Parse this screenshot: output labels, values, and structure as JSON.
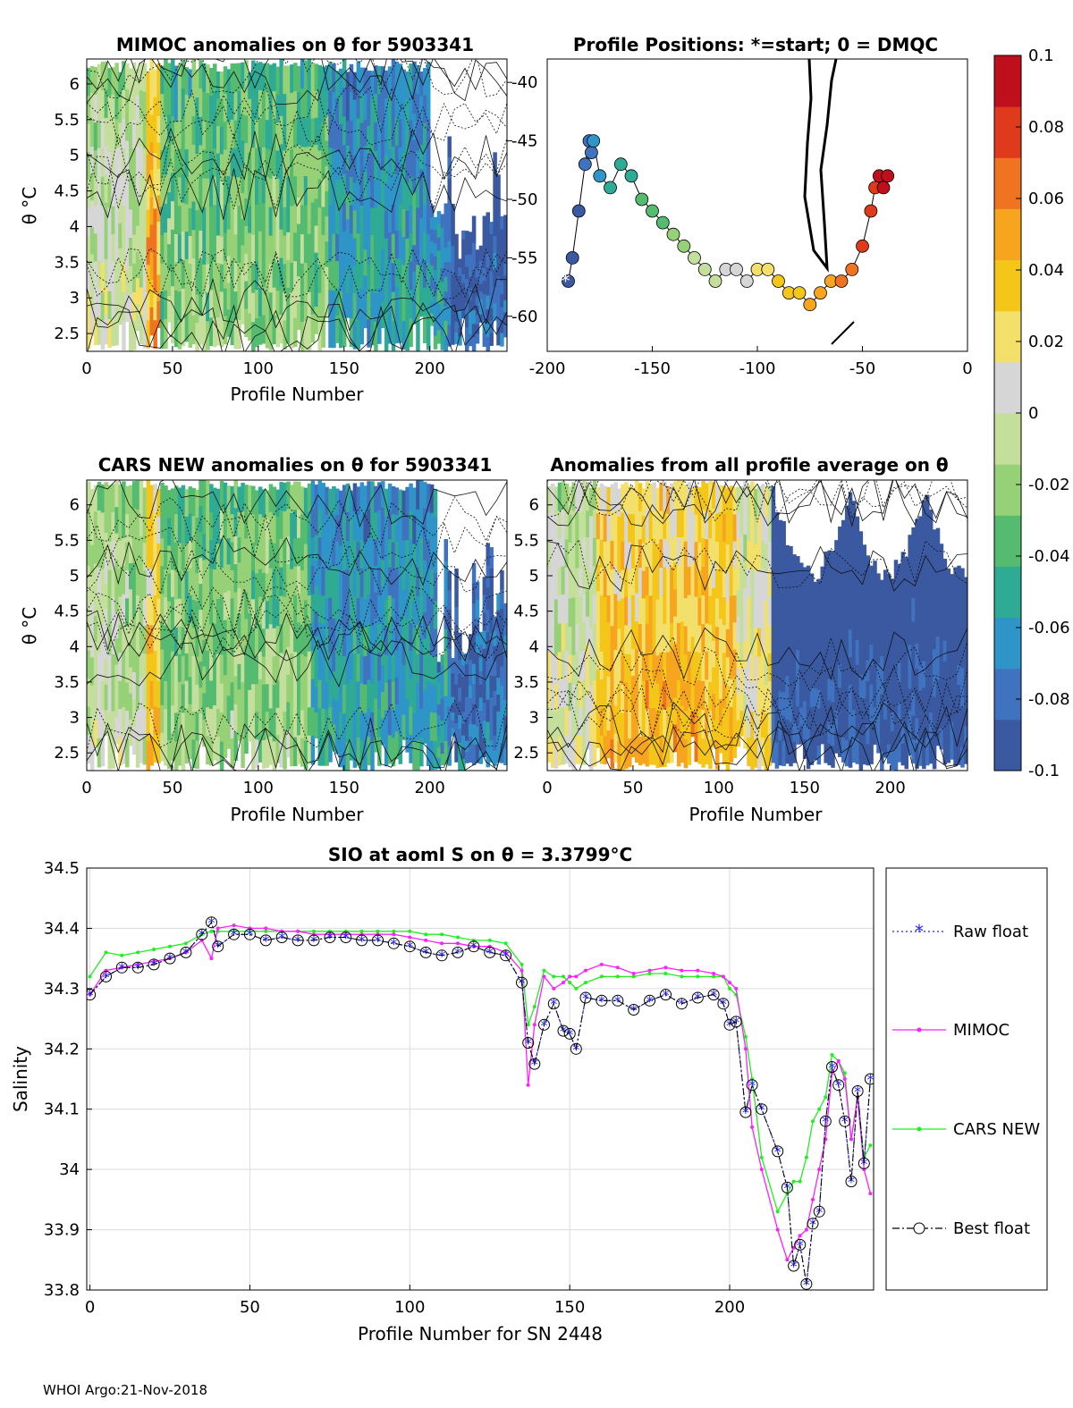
{
  "footer": "WHOI Argo:21-Nov-2018",
  "colors": {
    "raw": "#2020ff",
    "mimoc": "#ff20ff",
    "cars": "#22ee22",
    "best": "#000000",
    "colormap": [
      "#3a59a0",
      "#3f72bf",
      "#2f95c8",
      "#2eaa95",
      "#55bb70",
      "#96d077",
      "#c4df9c",
      "#d6d6d6",
      "#f3e06a",
      "#f4c61a",
      "#f7a51f",
      "#ef7321",
      "#e03a1c",
      "#c00f1c"
    ]
  },
  "colorbar": {
    "ticks": [
      "0.1",
      "0.08",
      "0.06",
      "0.04",
      "0.02",
      "0",
      "-0.02",
      "-0.04",
      "-0.06",
      "-0.08",
      "-0.1"
    ],
    "range": [
      -0.1,
      0.1
    ]
  },
  "panels": {
    "mimoc": {
      "title": "MIMOC anomalies on θ  for 5903341",
      "ylabel": "θ °C",
      "xlabel": "Profile Number",
      "yticks": [
        "6",
        "5.5",
        "5",
        "4.5",
        "4",
        "3.5",
        "3",
        "2.5"
      ],
      "xticks": [
        "0",
        "50",
        "100",
        "150",
        "200"
      ]
    },
    "positions": {
      "title": "Profile Positions: *=start; 0 = DMQC",
      "yticks": [
        "-40",
        "-45",
        "-50",
        "-55",
        "-60"
      ],
      "xticks": [
        "-200",
        "-150",
        "-100",
        "-50",
        "0"
      ]
    },
    "cars": {
      "title": "CARS NEW anomalies on θ for 5903341",
      "ylabel": "θ °C",
      "xlabel": "Profile Number",
      "yticks": [
        "6",
        "5.5",
        "5",
        "4.5",
        "4",
        "3.5",
        "3",
        "2.5"
      ],
      "xticks": [
        "0",
        "50",
        "100",
        "150",
        "200"
      ]
    },
    "avg": {
      "title": "Anomalies from all profile average on θ",
      "xlabel": "Profile Number",
      "yticks": [
        "6",
        "5.5",
        "5",
        "4.5",
        "4",
        "3.5",
        "3",
        "2.5"
      ],
      "xticks": [
        "0",
        "50",
        "100",
        "150",
        "200"
      ]
    }
  },
  "chart_data": [
    {
      "type": "heatmap",
      "title": "MIMOC anomalies on θ  for 5903341",
      "xlabel": "Profile Number",
      "ylabel": "θ °C",
      "xlim": [
        0,
        245
      ],
      "ylim": [
        2.25,
        6.35
      ],
      "color_range": [
        -0.1,
        0.1
      ],
      "segments": [
        {
          "x": [
            0,
            35
          ],
          "mean_anomaly": -0.005
        },
        {
          "x": [
            35,
            42
          ],
          "mean_anomaly": 0.04
        },
        {
          "x": [
            42,
            140
          ],
          "mean_anomaly": -0.03
        },
        {
          "x": [
            140,
            210
          ],
          "mean_anomaly": -0.06
        },
        {
          "x": [
            210,
            245
          ],
          "mean_anomaly": -0.09
        }
      ]
    },
    {
      "type": "scatter",
      "title": "Profile Positions: *=start; 0 = DMQC",
      "xlim": [
        -200,
        0
      ],
      "ylim": [
        -63,
        -38
      ],
      "x": [
        -190,
        -188,
        -185,
        -182,
        -180,
        -179,
        -178,
        -175,
        -170,
        -165,
        -160,
        -155,
        -150,
        -145,
        -140,
        -135,
        -130,
        -125,
        -120,
        -115,
        -110,
        -105,
        -100,
        -95,
        -90,
        -85,
        -80,
        -75,
        -70,
        -65,
        -60,
        -55,
        -50,
        -46,
        -44,
        -42,
        -40,
        -38
      ],
      "y": [
        -57,
        -55,
        -51,
        -47,
        -45,
        -46,
        -45,
        -48,
        -49,
        -47,
        -48,
        -50,
        -51,
        -52,
        -53,
        -54,
        -55,
        -56,
        -57,
        -56,
        -56,
        -57,
        -56,
        -56,
        -57,
        -58,
        -58,
        -59,
        -58,
        -57,
        -57,
        -56,
        -54,
        -51,
        -49,
        -48,
        -49,
        -48
      ],
      "color_by": "profile number (blue = first, red = last)"
    },
    {
      "type": "heatmap",
      "title": "CARS NEW anomalies on θ for 5903341",
      "xlabel": "Profile Number",
      "ylabel": "θ °C",
      "xlim": [
        0,
        245
      ],
      "ylim": [
        2.25,
        6.35
      ],
      "color_range": [
        -0.1,
        0.1
      ],
      "segments": [
        {
          "x": [
            0,
            35
          ],
          "mean_anomaly": -0.01
        },
        {
          "x": [
            35,
            42
          ],
          "mean_anomaly": 0.03
        },
        {
          "x": [
            42,
            130
          ],
          "mean_anomaly": -0.025
        },
        {
          "x": [
            130,
            210
          ],
          "mean_anomaly": -0.06
        },
        {
          "x": [
            210,
            245
          ],
          "mean_anomaly": -0.08
        }
      ]
    },
    {
      "type": "heatmap",
      "title": "Anomalies from all profile average on θ",
      "xlabel": "Profile Number",
      "xlim": [
        0,
        245
      ],
      "ylim": [
        2.25,
        6.35
      ],
      "color_range": [
        -0.1,
        0.1
      ],
      "segments": [
        {
          "x": [
            0,
            28
          ],
          "mean_anomaly": 0.0
        },
        {
          "x": [
            28,
            110
          ],
          "mean_anomaly": 0.035
        },
        {
          "x": [
            110,
            130
          ],
          "mean_anomaly": 0.01
        },
        {
          "x": [
            130,
            245
          ],
          "mean_anomaly": -0.1
        }
      ]
    },
    {
      "type": "line",
      "title": "SIO at aoml S on θ = 3.3799°C",
      "xlabel": "Profile Number for SN 2448",
      "ylabel": "Salinity",
      "xlim": [
        -1,
        245
      ],
      "ylim": [
        33.8,
        34.5
      ],
      "xticks": [
        "0",
        "50",
        "100",
        "150",
        "200"
      ],
      "yticks": [
        "34.5",
        "34.4",
        "34.3",
        "34.2",
        "34.1",
        "34",
        "33.9",
        "33.8"
      ],
      "legend": [
        "Raw float",
        "MIMOC",
        "CARS NEW",
        "Best float"
      ],
      "legend_position": "right outside",
      "x": [
        0,
        5,
        10,
        15,
        20,
        25,
        30,
        35,
        38,
        40,
        45,
        50,
        55,
        60,
        65,
        70,
        75,
        80,
        85,
        90,
        95,
        100,
        105,
        110,
        115,
        120,
        125,
        130,
        135,
        137,
        139,
        142,
        145,
        148,
        150,
        152,
        155,
        160,
        165,
        170,
        175,
        180,
        185,
        190,
        195,
        198,
        200,
        202,
        205,
        207,
        210,
        215,
        218,
        220,
        222,
        224,
        226,
        228,
        230,
        232,
        234,
        236,
        238,
        240,
        242,
        244
      ],
      "series": [
        {
          "name": "Raw float",
          "values": [
            34.29,
            34.32,
            34.335,
            34.335,
            34.34,
            34.35,
            34.36,
            34.39,
            34.41,
            34.37,
            34.39,
            34.39,
            34.38,
            34.385,
            34.38,
            34.38,
            34.385,
            34.385,
            34.38,
            34.38,
            34.375,
            34.37,
            34.36,
            34.355,
            34.36,
            34.37,
            34.36,
            34.355,
            34.31,
            34.21,
            34.175,
            34.24,
            34.275,
            34.23,
            34.225,
            34.2,
            34.285,
            34.28,
            34.28,
            34.265,
            34.28,
            34.29,
            34.275,
            34.285,
            34.29,
            34.275,
            34.24,
            34.245,
            34.095,
            34.14,
            34.1,
            34.03,
            33.97,
            33.84,
            33.875,
            33.81,
            33.91,
            33.93,
            34.08,
            34.17,
            34.14,
            34.08,
            33.98,
            34.13,
            34.01,
            34.15
          ]
        },
        {
          "name": "MIMOC",
          "values": [
            34.29,
            34.33,
            34.335,
            34.34,
            34.345,
            34.35,
            34.36,
            34.38,
            34.35,
            34.4,
            34.405,
            34.4,
            34.4,
            34.395,
            34.395,
            34.39,
            34.39,
            34.39,
            34.39,
            34.39,
            34.39,
            34.385,
            34.38,
            34.375,
            34.375,
            34.37,
            34.37,
            34.36,
            34.33,
            34.14,
            34.24,
            34.32,
            34.3,
            34.31,
            34.32,
            34.32,
            34.33,
            34.34,
            34.335,
            34.325,
            34.33,
            34.335,
            34.33,
            34.33,
            34.325,
            34.32,
            34.31,
            34.3,
            34.2,
            34.07,
            34.0,
            33.9,
            33.85,
            33.87,
            33.89,
            33.9,
            33.95,
            34.0,
            34.05,
            34.16,
            34.18,
            34.15,
            34.05,
            34.12,
            34.0,
            33.96
          ]
        },
        {
          "name": "CARS NEW",
          "values": [
            34.32,
            34.36,
            34.355,
            34.36,
            34.365,
            34.37,
            34.375,
            34.39,
            34.395,
            34.395,
            34.395,
            34.395,
            34.395,
            34.395,
            34.395,
            34.395,
            34.395,
            34.395,
            34.395,
            34.395,
            34.395,
            34.395,
            34.39,
            34.39,
            34.385,
            34.38,
            34.38,
            34.375,
            34.34,
            34.24,
            34.27,
            34.33,
            34.32,
            34.32,
            34.31,
            34.3,
            34.31,
            34.32,
            34.32,
            34.32,
            34.325,
            34.325,
            34.32,
            34.32,
            34.32,
            34.32,
            34.3,
            34.29,
            34.22,
            34.15,
            34.02,
            33.93,
            33.96,
            33.98,
            33.98,
            34.02,
            34.08,
            34.1,
            34.12,
            34.19,
            34.18,
            34.16,
            34.05,
            34.12,
            34.02,
            34.04
          ]
        },
        {
          "name": "Best float",
          "values": [
            34.29,
            34.32,
            34.335,
            34.335,
            34.34,
            34.35,
            34.36,
            34.39,
            34.41,
            34.37,
            34.39,
            34.39,
            34.38,
            34.385,
            34.38,
            34.38,
            34.385,
            34.385,
            34.38,
            34.38,
            34.375,
            34.37,
            34.36,
            34.355,
            34.36,
            34.37,
            34.36,
            34.355,
            34.31,
            34.21,
            34.175,
            34.24,
            34.275,
            34.23,
            34.225,
            34.2,
            34.285,
            34.28,
            34.28,
            34.265,
            34.28,
            34.29,
            34.275,
            34.285,
            34.29,
            34.275,
            34.24,
            34.245,
            34.095,
            34.14,
            34.1,
            34.03,
            33.97,
            33.84,
            33.875,
            33.81,
            33.91,
            33.93,
            34.08,
            34.17,
            34.14,
            34.08,
            33.98,
            34.13,
            34.01,
            34.15
          ]
        }
      ]
    }
  ]
}
